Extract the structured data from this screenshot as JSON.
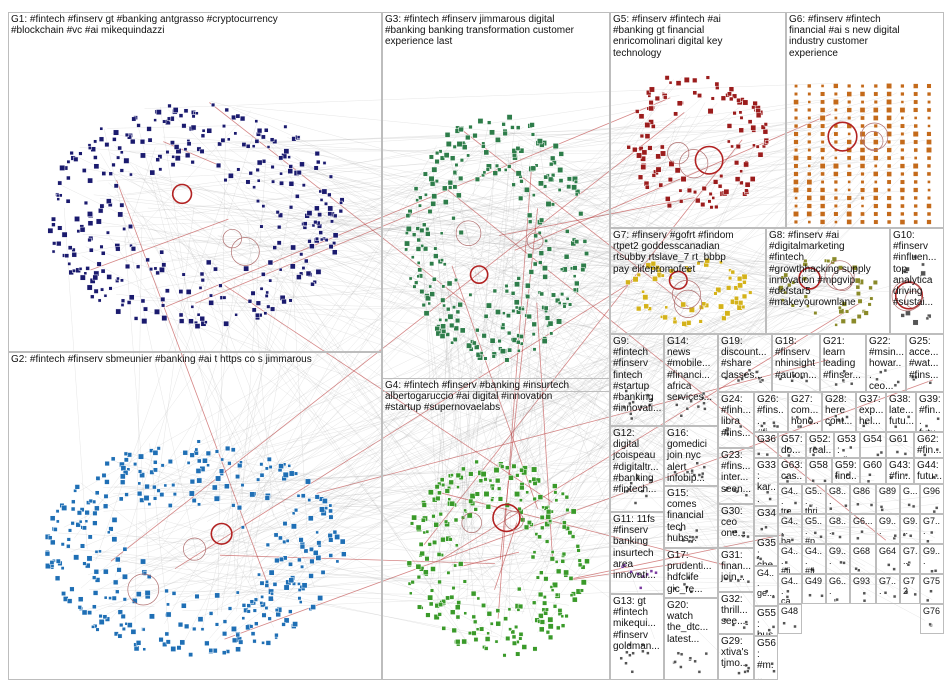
{
  "groups": [
    {
      "id": "G1",
      "label": "G1: #fintech #finserv gt #banking antgrasso #cryptocurrency\n#blockchain #vc #ai mikequindazzi",
      "color": "#1a1a6e"
    },
    {
      "id": "G2",
      "label": "G2: #fintech #finserv sbmeunier #banking #ai t https co s jimmarous",
      "color": "#1f6fb5"
    },
    {
      "id": "G3",
      "label": "G3: #fintech #finserv jimmarous digital\n#banking banking transformation customer\nexperience last",
      "color": "#2e7d4a"
    },
    {
      "id": "G4",
      "label": "G4: #fintech #finserv #banking #insurtech\nalbertogaruccio #ai digital #innovation\n#startup #supernovaelabs",
      "color": "#3a9a2a"
    },
    {
      "id": "G5",
      "label": "G5: #finserv #fintech #ai\n#banking gt financial\nenricomolinari digital key\ntechnology",
      "color": "#9b1c1c"
    },
    {
      "id": "G6",
      "label": "G6: #finserv #fintech\nfinancial #ai s new digital\nindustry customer\nexperience",
      "color": "#c46a1a"
    },
    {
      "id": "G7",
      "label": "G7: #finserv #gofrt #findom\nrtpet2 goddesscanadian\nrtsubby rtslave_7 rt_bbbp\npay elitepromofeet",
      "color": "#d4b21a"
    },
    {
      "id": "G8",
      "label": "G8: #finserv #ai\n#digitalmarketing\n#fintech\n#growthhacking supply\ninnovation #mpgvip\n#defstar5\n#makeyourownlane",
      "color": "#8a8a2a"
    },
    {
      "id": "G9",
      "label": "G9:\n#fintech\n#finserv\nfintech\n#startup\n#banking\n#innovati...",
      "color": "#555"
    },
    {
      "id": "G10",
      "label": "G10:\n#finserv\n#influen...\ntop\nanalytica\ndriving\n#sustai...",
      "color": "#555"
    },
    {
      "id": "G11",
      "label": "G11: 11fs\n#finserv\nbanking\ninsurtech\narea\ninnovati...",
      "color": "#7a3aa0"
    },
    {
      "id": "G12",
      "label": "G12:\ndigital\njcoispeau\n#digitaltr...\n#banking\n#fintech...",
      "color": "#555"
    },
    {
      "id": "G13",
      "label": "G13: gt\n#fintech\nmikequi...\n#finserv\ngoldman...",
      "color": "#555"
    },
    {
      "id": "G14",
      "label": "G14:\nnews\n#mobile...\n#financi...\nafrica\nservices...",
      "color": "#555"
    },
    {
      "id": "G15",
      "label": "G15:\ncomes\nfinancial\ntech\nhubs...",
      "color": "#555"
    },
    {
      "id": "G16",
      "label": "G16:\ngomedici\njoin nyc\nalert\ninfobip...",
      "color": "#555"
    },
    {
      "id": "G17",
      "label": "G17:\nprudenti...\nhdfclife\ngic_re...",
      "color": "#555"
    },
    {
      "id": "G18",
      "label": "G18:\n#finserv\nnhinsight\n#autom...",
      "color": "#555"
    },
    {
      "id": "G19",
      "label": "G19:\ndiscount...\n#share\nclasses...",
      "color": "#555"
    },
    {
      "id": "G20",
      "label": "G20:\nwatch\nthe_dtc...\nlatest...",
      "color": "#555"
    },
    {
      "id": "G21",
      "label": "G21:\nlearn\nleading\n#finser...",
      "color": "#555"
    },
    {
      "id": "G22",
      "label": "G22:\n#msin...\nhowar...\nceo...",
      "color": "#555"
    },
    {
      "id": "G23",
      "label": "G23:\n#fins...\ninter...\nseen...",
      "color": "#555"
    },
    {
      "id": "G24",
      "label": "G24:\n#finh...\nlibra\n#fins...",
      "color": "#555"
    },
    {
      "id": "G25",
      "label": "G25:\nacce...\n#wat...\n#fins...",
      "color": "#555"
    },
    {
      "id": "G26",
      "label": "G26:\n#fins...\n#fi...",
      "color": "#555"
    },
    {
      "id": "G27",
      "label": "G27:\ncom...\nhono...",
      "color": "#555"
    },
    {
      "id": "G28",
      "label": "G28:\nhere\ncont...",
      "color": "#555"
    },
    {
      "id": "G29",
      "label": "G29:\nxtiva's\ntjmo...",
      "color": "#555"
    },
    {
      "id": "G30",
      "label": "G30:\nceo\none...",
      "color": "#555"
    },
    {
      "id": "G31",
      "label": "G31:\nfinan...\njoin...",
      "color": "#555"
    },
    {
      "id": "G32",
      "label": "G32:\nthrill...\nsee...",
      "color": "#555"
    },
    {
      "id": "G33",
      "label": "G33:\nkar...\ncon...",
      "color": "#555"
    },
    {
      "id": "G34",
      "label": "G34",
      "color": "#555"
    },
    {
      "id": "G35",
      "label": "G35:\nche...\nout...",
      "color": "#555"
    },
    {
      "id": "G36",
      "label": "G36",
      "color": "#555"
    },
    {
      "id": "G37",
      "label": "G37:\nexp...\nhel...",
      "color": "#555"
    },
    {
      "id": "G38",
      "label": "G38:\nlate...\nfutu...",
      "color": "#555"
    },
    {
      "id": "G39",
      "label": "G39:\n#fin...\nfutu...",
      "color": "#555"
    },
    {
      "id": "G40",
      "label": "G4...\nba...",
      "color": "#555"
    },
    {
      "id": "G41",
      "label": "G4...\n#fi...",
      "color": "#555"
    },
    {
      "id": "G42",
      "label": "G4...\nge...",
      "color": "#555"
    },
    {
      "id": "G43",
      "label": "G43:\n#fin...",
      "color": "#555"
    },
    {
      "id": "G44",
      "label": "G44:\nfutu...",
      "color": "#555"
    },
    {
      "id": "G45",
      "label": "G4...\ntre...",
      "color": "#555"
    },
    {
      "id": "G46",
      "label": "G4...\nca...",
      "color": "#555"
    },
    {
      "id": "G47",
      "label": "G4...\n#fi...",
      "color": "#555"
    },
    {
      "id": "G48",
      "label": "G48",
      "color": "#555"
    },
    {
      "id": "G49",
      "label": "G49",
      "color": "#555"
    },
    {
      "id": "G50",
      "label": "G5...\nthri...",
      "color": "#555"
    },
    {
      "id": "G51",
      "label": "G5...\n#p...",
      "color": "#555"
    },
    {
      "id": "G52",
      "label": "G52:\nreal...",
      "color": "#555"
    },
    {
      "id": "G53",
      "label": "G53:\n#fin...",
      "color": "#555"
    },
    {
      "id": "G54",
      "label": "G54",
      "color": "#555"
    },
    {
      "id": "G55",
      "label": "G55:\nbus...",
      "color": "#555"
    },
    {
      "id": "G56",
      "label": "G56:\n#m...",
      "color": "#555"
    },
    {
      "id": "G57",
      "label": "G57:\ndo...",
      "color": "#555"
    },
    {
      "id": "G58",
      "label": "G58",
      "color": "#555"
    },
    {
      "id": "G59",
      "label": "G59:\nfind...",
      "color": "#555"
    },
    {
      "id": "G60",
      "label": "G60",
      "color": "#555"
    },
    {
      "id": "G61",
      "label": "G61",
      "color": "#555"
    },
    {
      "id": "G62",
      "label": "G62:\n#fin...",
      "color": "#555"
    },
    {
      "id": "G63",
      "label": "G63:\ncas...",
      "color": "#555"
    },
    {
      "id": "G64",
      "label": "G64",
      "color": "#555"
    },
    {
      "id": "G68",
      "label": "G68",
      "color": "#555"
    },
    {
      "id": "G72",
      "label": "G72",
      "color": "#555"
    },
    {
      "id": "G75",
      "label": "G75",
      "color": "#555"
    },
    {
      "id": "G76",
      "label": "G76",
      "color": "#555"
    },
    {
      "id": "G86",
      "label": "G86",
      "color": "#555"
    },
    {
      "id": "G87",
      "label": "G87",
      "color": "#555"
    },
    {
      "id": "G89",
      "label": "G89",
      "color": "#555"
    },
    {
      "id": "G93",
      "label": "G93",
      "color": "#555"
    },
    {
      "id": "G96",
      "label": "G96",
      "color": "#555"
    },
    {
      "id": "Gx1",
      "label": "G8...",
      "color": "#555"
    },
    {
      "id": "Gx2",
      "label": "G8...",
      "color": "#555"
    },
    {
      "id": "Gx3",
      "label": "G6...",
      "color": "#555"
    },
    {
      "id": "Gx4",
      "label": "G9...",
      "color": "#555"
    },
    {
      "id": "Gx5",
      "label": "G9...",
      "color": "#555"
    },
    {
      "id": "Gx6",
      "label": "G7...",
      "color": "#555"
    },
    {
      "id": "Gx7",
      "label": "G9...",
      "color": "#555"
    },
    {
      "id": "Gx8",
      "label": "G7...",
      "color": "#555"
    },
    {
      "id": "Gx9",
      "label": "G9...",
      "color": "#555"
    },
    {
      "id": "Gx10",
      "label": "G6...",
      "color": "#555"
    },
    {
      "id": "Gx11",
      "label": "G7...",
      "color": "#555"
    },
    {
      "id": "Gx12",
      "label": "G...",
      "color": "#555"
    }
  ],
  "edge_color": "#9a9a9a",
  "highlight_edge_color": "#b22222"
}
